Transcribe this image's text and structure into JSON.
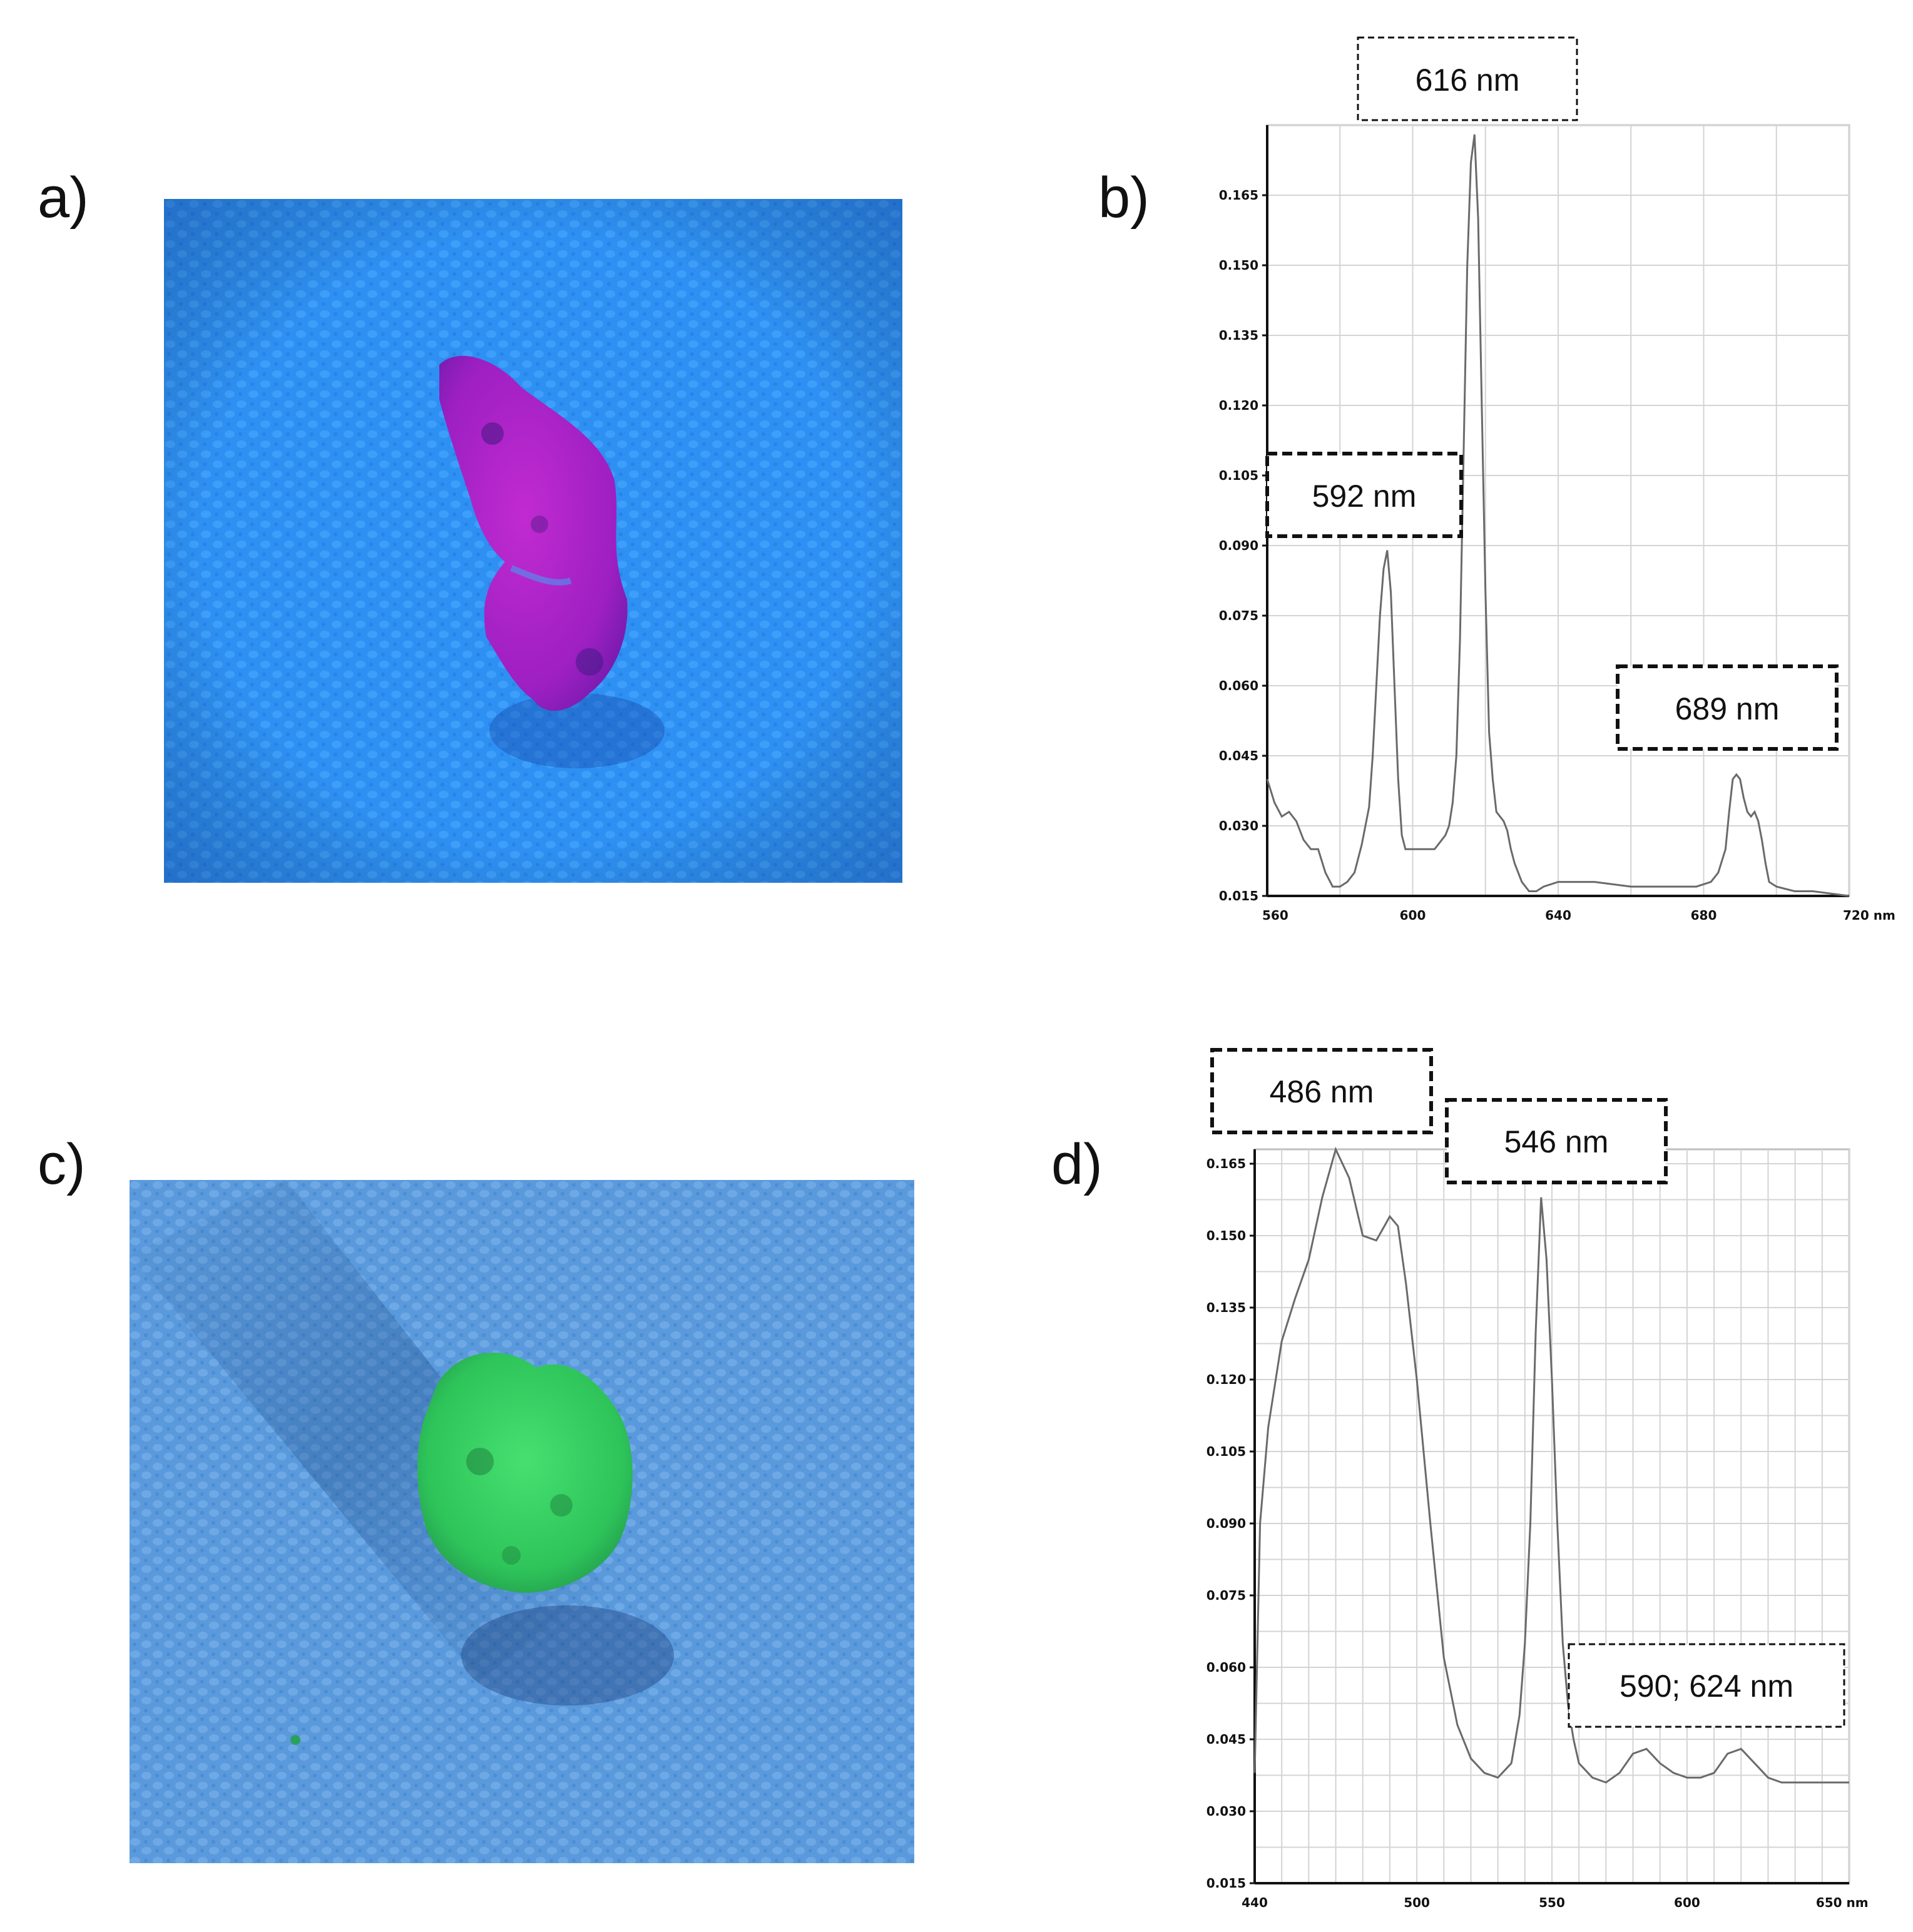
{
  "panels": {
    "a": {
      "label": "a)",
      "photo": "purple-fluorescent-fragment-under-uv"
    },
    "b": {
      "label": "b)"
    },
    "c": {
      "label": "c)",
      "photo": "green-fluorescent-fragment-under-uv"
    },
    "d": {
      "label": "d)"
    }
  },
  "colors": {
    "background_uv": "#2f8ff0",
    "fragment_purple": "#b020c8",
    "fragment_green": "#33d060",
    "spectrum_line": "#6a6a6a",
    "grid": "#d4d4d4"
  },
  "chart_data": [
    {
      "type": "line",
      "panel": "b",
      "title": "",
      "xlabel": "",
      "ylabel": "",
      "x_unit": "nm",
      "xlim": [
        560,
        720
      ],
      "ylim": [
        0.015,
        0.18
      ],
      "x_ticks": [
        "560",
        "600",
        "640",
        "680",
        "720 nm"
      ],
      "x_tick_values": [
        560,
        600,
        640,
        680,
        720
      ],
      "y_ticks": [
        "0.015",
        "0.030",
        "0.045",
        "0.060",
        "0.075",
        "0.090",
        "0.105",
        "0.120",
        "0.135",
        "0.150",
        "0.165"
      ],
      "y_tick_values": [
        0.015,
        0.03,
        0.045,
        0.06,
        0.075,
        0.09,
        0.105,
        0.12,
        0.135,
        0.15,
        0.165
      ],
      "grid": true,
      "annotations": [
        "616 nm",
        "592 nm",
        "689 nm"
      ],
      "series": [
        {
          "x": [
            560,
            562,
            564,
            566,
            568,
            570,
            572,
            574,
            576,
            578,
            580,
            582,
            584,
            586,
            588,
            589,
            590,
            591,
            592,
            593,
            594,
            595,
            596,
            597,
            598,
            599,
            600,
            602,
            604,
            606,
            607,
            608,
            609,
            610,
            611,
            612,
            613,
            614,
            615,
            616,
            617,
            618,
            619,
            620,
            621,
            622,
            623,
            624,
            625,
            626,
            627,
            628,
            629,
            630,
            632,
            634,
            636,
            640,
            650,
            660,
            670,
            678,
            682,
            684,
            686,
            687,
            688,
            689,
            690,
            691,
            692,
            693,
            694,
            695,
            696,
            697,
            698,
            700,
            705,
            710,
            720
          ],
          "y": [
            0.04,
            0.035,
            0.032,
            0.033,
            0.031,
            0.027,
            0.025,
            0.025,
            0.02,
            0.017,
            0.017,
            0.018,
            0.02,
            0.026,
            0.034,
            0.045,
            0.06,
            0.075,
            0.085,
            0.089,
            0.08,
            0.06,
            0.04,
            0.028,
            0.025,
            0.025,
            0.025,
            0.025,
            0.025,
            0.025,
            0.026,
            0.027,
            0.028,
            0.03,
            0.035,
            0.045,
            0.07,
            0.11,
            0.15,
            0.172,
            0.178,
            0.16,
            0.12,
            0.08,
            0.05,
            0.04,
            0.033,
            0.032,
            0.031,
            0.029,
            0.025,
            0.022,
            0.02,
            0.018,
            0.016,
            0.016,
            0.017,
            0.018,
            0.018,
            0.017,
            0.017,
            0.017,
            0.018,
            0.02,
            0.025,
            0.033,
            0.04,
            0.041,
            0.04,
            0.036,
            0.033,
            0.032,
            0.033,
            0.031,
            0.027,
            0.022,
            0.018,
            0.017,
            0.016,
            0.016,
            0.015
          ]
        }
      ]
    },
    {
      "type": "line",
      "panel": "d",
      "title": "",
      "xlabel": "",
      "ylabel": "",
      "x_unit": "nm",
      "xlim": [
        440,
        660
      ],
      "ylim": [
        0.015,
        0.168
      ],
      "x_ticks": [
        "440",
        "500",
        "550",
        "600",
        "650 nm"
      ],
      "x_tick_values": [
        440,
        500,
        550,
        600,
        650
      ],
      "y_ticks": [
        "0.015",
        "0.030",
        "0.045",
        "0.060",
        "0.075",
        "0.090",
        "0.105",
        "0.120",
        "0.135",
        "0.150",
        "0.165"
      ],
      "y_tick_values": [
        0.015,
        0.03,
        0.045,
        0.06,
        0.075,
        0.09,
        0.105,
        0.12,
        0.135,
        0.15,
        0.165
      ],
      "grid": true,
      "annotations": [
        "486 nm",
        "546 nm",
        "590; 624 nm"
      ],
      "series": [
        {
          "x": [
            440,
            442,
            445,
            450,
            455,
            460,
            465,
            470,
            475,
            480,
            485,
            488,
            490,
            493,
            496,
            500,
            505,
            510,
            515,
            520,
            525,
            530,
            535,
            538,
            540,
            542,
            544,
            546,
            548,
            550,
            552,
            554,
            556,
            558,
            560,
            565,
            570,
            575,
            580,
            585,
            590,
            595,
            600,
            605,
            610,
            615,
            620,
            625,
            630,
            635,
            640,
            650,
            660
          ],
          "y": [
            0.038,
            0.09,
            0.11,
            0.128,
            0.137,
            0.145,
            0.158,
            0.168,
            0.162,
            0.15,
            0.149,
            0.152,
            0.154,
            0.152,
            0.14,
            0.12,
            0.09,
            0.062,
            0.048,
            0.041,
            0.038,
            0.037,
            0.04,
            0.05,
            0.065,
            0.09,
            0.13,
            0.158,
            0.145,
            0.12,
            0.09,
            0.065,
            0.052,
            0.045,
            0.04,
            0.037,
            0.036,
            0.038,
            0.042,
            0.043,
            0.04,
            0.038,
            0.037,
            0.037,
            0.038,
            0.042,
            0.043,
            0.04,
            0.037,
            0.036,
            0.036,
            0.036,
            0.036
          ]
        }
      ]
    }
  ]
}
